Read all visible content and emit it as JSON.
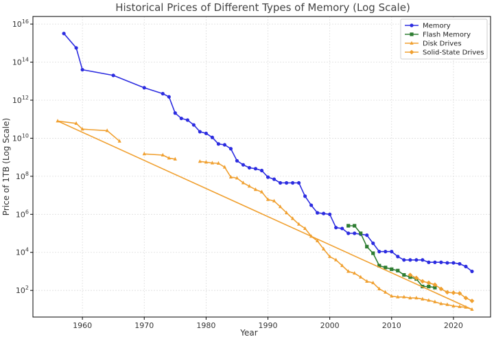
{
  "chart_data": {
    "type": "line",
    "title": "Historical Prices of Different Types of Memory (Log Scale)",
    "xlabel": "Year",
    "ylabel": "Price of 1TB (Log Scale)",
    "xlim": [
      1952,
      2026
    ],
    "ylim_log10": [
      0.6,
      16.4
    ],
    "y_scale": "log",
    "grid": true,
    "legend_position": "top-right",
    "x_ticks": [
      1960,
      1970,
      1980,
      1990,
      2000,
      2010,
      2020
    ],
    "x_tick_labels": [
      "1960",
      "1970",
      "1980",
      "1990",
      "2000",
      "2010",
      "2020"
    ],
    "y_ticks_log10": [
      2,
      4,
      6,
      8,
      10,
      12,
      14,
      16
    ],
    "y_tick_labels": [
      {
        "base": "10",
        "exp": "2"
      },
      {
        "base": "10",
        "exp": "4"
      },
      {
        "base": "10",
        "exp": "6"
      },
      {
        "base": "10",
        "exp": "8"
      },
      {
        "base": "10",
        "exp": "10"
      },
      {
        "base": "10",
        "exp": "12"
      },
      {
        "base": "10",
        "exp": "14"
      },
      {
        "base": "10",
        "exp": "16"
      }
    ],
    "series": [
      {
        "name": "Memory",
        "color": "#2c2ce0",
        "marker": "circle",
        "x": [
          1957,
          1959,
          1960,
          1965,
          1970,
          1973,
          1974,
          1975,
          1976,
          1977,
          1978,
          1979,
          1980,
          1981,
          1982,
          1983,
          1984,
          1985,
          1986,
          1987,
          1988,
          1989,
          1990,
          1991,
          1992,
          1993,
          1994,
          1995,
          1996,
          1997,
          1998,
          1999,
          2000,
          2001,
          2002,
          2003,
          2004,
          2005,
          2006,
          2007,
          2008,
          2009,
          2010,
          2011,
          2012,
          2013,
          2014,
          2015,
          2016,
          2017,
          2018,
          2019,
          2020,
          2021,
          2022,
          2023
        ],
        "y": [
          3200000000000000.0,
          560000000000000.0,
          40000000000000.0,
          20000000000000.0,
          4500000000000.0,
          2200000000000.0,
          1500000000000.0,
          210000000000.0,
          110000000000.0,
          90000000000.0,
          50000000000.0,
          22000000000.0,
          18000000000.0,
          11000000000.0,
          5000000000.0,
          4500000000.0,
          2800000000.0,
          650000000.0,
          400000000.0,
          280000000.0,
          250000000.0,
          200000000.0,
          90000000.0,
          70000000.0,
          45000000.0,
          45000000.0,
          45000000.0,
          45000000.0,
          9000000.0,
          3000000.0,
          1200000.0,
          1100000.0,
          1000000.0,
          200000.0,
          180000.0,
          100000.0,
          100000.0,
          90000.0,
          80000.0,
          30000.0,
          11000.0,
          11000.0,
          11000.0,
          6000.0,
          4000.0,
          4000.0,
          4000.0,
          4000.0,
          3000.0,
          3000.0,
          3000.0,
          2800.0,
          2800.0,
          2500.0,
          1800.0,
          1000.0
        ]
      },
      {
        "name": "Flash Memory",
        "color": "#2e7d32",
        "marker": "square",
        "x": [
          2003,
          2004,
          2005,
          2006,
          2007,
          2008,
          2009,
          2010,
          2011,
          2012,
          2013,
          2014,
          2015,
          2016,
          2017
        ],
        "y": [
          250000.0,
          250000.0,
          100000.0,
          20000.0,
          9000.0,
          2000.0,
          1600.0,
          1300.0,
          1100.0,
          650.0,
          500.0,
          400.0,
          160.0,
          160.0,
          140.0
        ]
      },
      {
        "name": "Disk Drives",
        "color": "#f0a030",
        "marker": "triangle",
        "segments": [
          {
            "x": [
              1956,
              1959,
              1960,
              1964,
              1966
            ],
            "y": [
              80000000000.0,
              60000000000.0,
              30000000000.0,
              25000000000.0,
              7000000000.0
            ]
          },
          {
            "x": [
              1970,
              1973,
              1974,
              1975
            ],
            "y": [
              1500000000.0,
              1300000000.0,
              900000000.0,
              800000000.0
            ]
          },
          {
            "x": [
              1979,
              1980,
              1981,
              1982,
              1983,
              1984,
              1985,
              1986,
              1987,
              1988,
              1989,
              1990,
              1991,
              1992,
              1993,
              1994,
              1995,
              1996,
              1997,
              1998,
              1999,
              2000,
              2001,
              2002,
              2003,
              2004,
              2005,
              2006,
              2007,
              2008,
              2009,
              2010,
              2011,
              2012,
              2013,
              2014,
              2015,
              2016,
              2017,
              2018,
              2019,
              2020,
              2021,
              2022,
              2023
            ],
            "y": [
              600000000.0,
              550000000.0,
              500000000.0,
              480000000.0,
              300000000.0,
              90000000.0,
              80000000.0,
              45000000.0,
              30000000.0,
              20000000.0,
              15000000.0,
              6000000.0,
              5000000.0,
              2500000.0,
              1200000.0,
              600000.0,
              300000.0,
              180000.0,
              70000.0,
              40000.0,
              15000.0,
              6000.0,
              4000.0,
              2000.0,
              1000.0,
              800.0,
              500.0,
              300.0,
              250.0,
              120.0,
              80.0,
              50.0,
              45.0,
              45.0,
              40.0,
              40.0,
              35.0,
              30.0,
              25.0,
              20.0,
              18.0,
              15.0,
              14.0,
              13.0,
              10.0
            ]
          },
          {
            "x": [
              1956,
              2023
            ],
            "y": [
              80000000000.0,
              10.0
            ]
          }
        ]
      },
      {
        "name": "Solid-State Drives",
        "color": "#f0a030",
        "marker": "diamond",
        "x": [
          2013,
          2014,
          2015,
          2016,
          2017,
          2018,
          2019,
          2020,
          2021,
          2022,
          2023
        ],
        "y": [
          650.0,
          450.0,
          300.0,
          250.0,
          200.0,
          120.0,
          80.0,
          75.0,
          70.0,
          40.0,
          28.0
        ]
      }
    ]
  }
}
